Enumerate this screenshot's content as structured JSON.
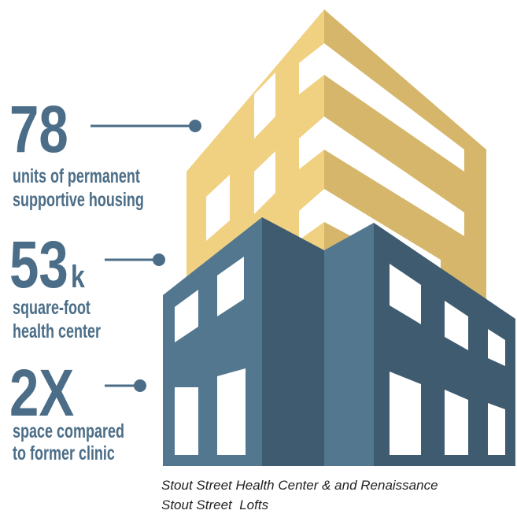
{
  "stats": [
    {
      "number": "78",
      "description": [
        "units of permanent",
        "supportive housing"
      ]
    },
    {
      "number": "53",
      "suffix": "k",
      "description": [
        "square-foot",
        "health center"
      ]
    },
    {
      "number": "2X",
      "description": [
        "space compared",
        "to former clinic"
      ]
    }
  ],
  "caption": [
    "Stout Street Health Center & and Renaissance",
    "Stout Street  Lofts"
  ]
}
